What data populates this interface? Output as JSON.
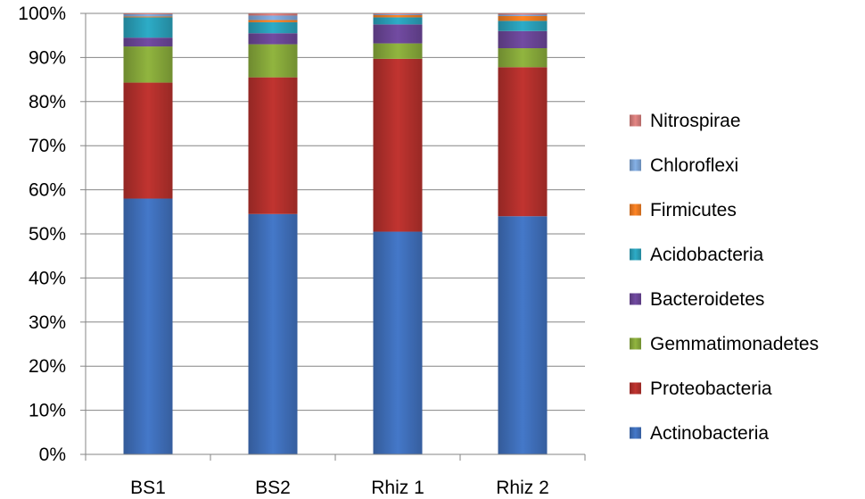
{
  "chart_data": {
    "type": "bar",
    "stacked": true,
    "percent_stacked": true,
    "categories": [
      "BS1",
      "BS2",
      "Rhiz 1",
      "Rhiz 2"
    ],
    "series": [
      {
        "name": "Actinobacteria",
        "color": "#3f6fba",
        "values": [
          58.0,
          54.5,
          50.5,
          54.0
        ]
      },
      {
        "name": "Proteobacteria",
        "color": "#b3302c",
        "values": [
          26.3,
          31.0,
          39.2,
          33.8
        ]
      },
      {
        "name": "Gemmatimonadetes",
        "color": "#86a83a",
        "values": [
          8.2,
          7.5,
          3.5,
          4.3
        ]
      },
      {
        "name": "Bacteroidetes",
        "color": "#6a4596",
        "values": [
          2.0,
          2.5,
          4.3,
          3.9
        ]
      },
      {
        "name": "Acidobacteria",
        "color": "#2a9fb8",
        "values": [
          4.6,
          2.5,
          1.6,
          2.3
        ]
      },
      {
        "name": "Firmicutes",
        "color": "#ec7b22",
        "values": [
          0.2,
          0.5,
          0.5,
          1.1
        ]
      },
      {
        "name": "Chloroflexi",
        "color": "#7ba4d6",
        "values": [
          0.5,
          1.0,
          0.2,
          0.3
        ]
      },
      {
        "name": "Nitrospirae",
        "color": "#d47c7a",
        "values": [
          0.2,
          0.5,
          0.2,
          0.3
        ]
      }
    ],
    "y_ticks": [
      "0%",
      "10%",
      "20%",
      "30%",
      "40%",
      "50%",
      "60%",
      "70%",
      "80%",
      "90%",
      "100%"
    ],
    "ylim": [
      0,
      100
    ],
    "grid": true,
    "legend_position": "right",
    "legend_order": [
      "Nitrospirae",
      "Chloroflexi",
      "Firmicutes",
      "Acidobacteria",
      "Bacteroidetes",
      "Gemmatimonadetes",
      "Proteobacteria",
      "Actinobacteria"
    ]
  }
}
